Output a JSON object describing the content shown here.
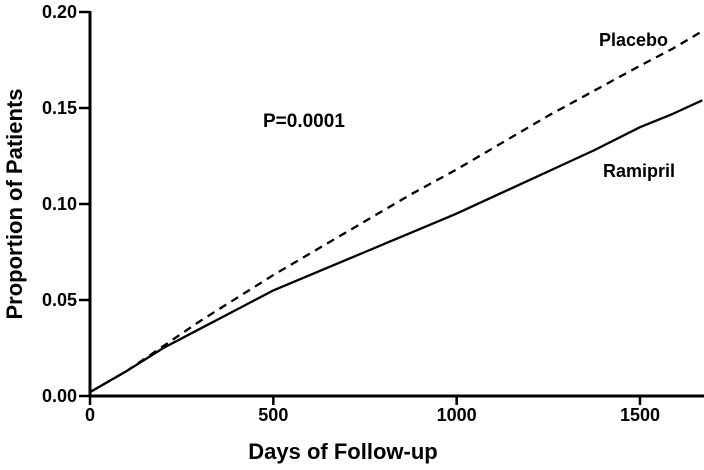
{
  "figure": {
    "background_color": "#ffffff",
    "line_color": "#000000"
  },
  "chart_data": {
    "type": "line",
    "title": "",
    "xlabel": "Days of Follow-up",
    "ylabel": "Proportion of Patients",
    "annotation": "P=0.0001",
    "xlim": [
      0,
      1675
    ],
    "ylim": [
      0,
      0.2
    ],
    "grid": false,
    "legend_position": "inline-labels",
    "xticks": [
      {
        "value": 0,
        "label": "0"
      },
      {
        "value": 500,
        "label": "500"
      },
      {
        "value": 1000,
        "label": "1000"
      },
      {
        "value": 1500,
        "label": "1500"
      }
    ],
    "yticks": [
      {
        "value": 0.0,
        "label": "0.00"
      },
      {
        "value": 0.05,
        "label": "0.05"
      },
      {
        "value": 0.1,
        "label": "0.10"
      },
      {
        "value": 0.15,
        "label": "0.15"
      },
      {
        "value": 0.2,
        "label": "0.20"
      }
    ],
    "x": [
      0,
      100,
      200,
      300,
      400,
      500,
      625,
      750,
      875,
      1000,
      1125,
      1250,
      1375,
      1500,
      1590,
      1670
    ],
    "series": [
      {
        "name": "Placebo",
        "line_style": "dashed",
        "color": "#000000",
        "values": [
          0.002,
          0.013,
          0.026,
          0.039,
          0.051,
          0.063,
          0.077,
          0.091,
          0.105,
          0.118,
          0.132,
          0.146,
          0.159,
          0.172,
          0.181,
          0.19
        ]
      },
      {
        "name": "Ramipril",
        "line_style": "solid",
        "color": "#000000",
        "values": [
          0.002,
          0.013,
          0.025,
          0.035,
          0.045,
          0.055,
          0.065,
          0.075,
          0.085,
          0.095,
          0.106,
          0.117,
          0.128,
          0.14,
          0.147,
          0.154
        ]
      }
    ]
  }
}
